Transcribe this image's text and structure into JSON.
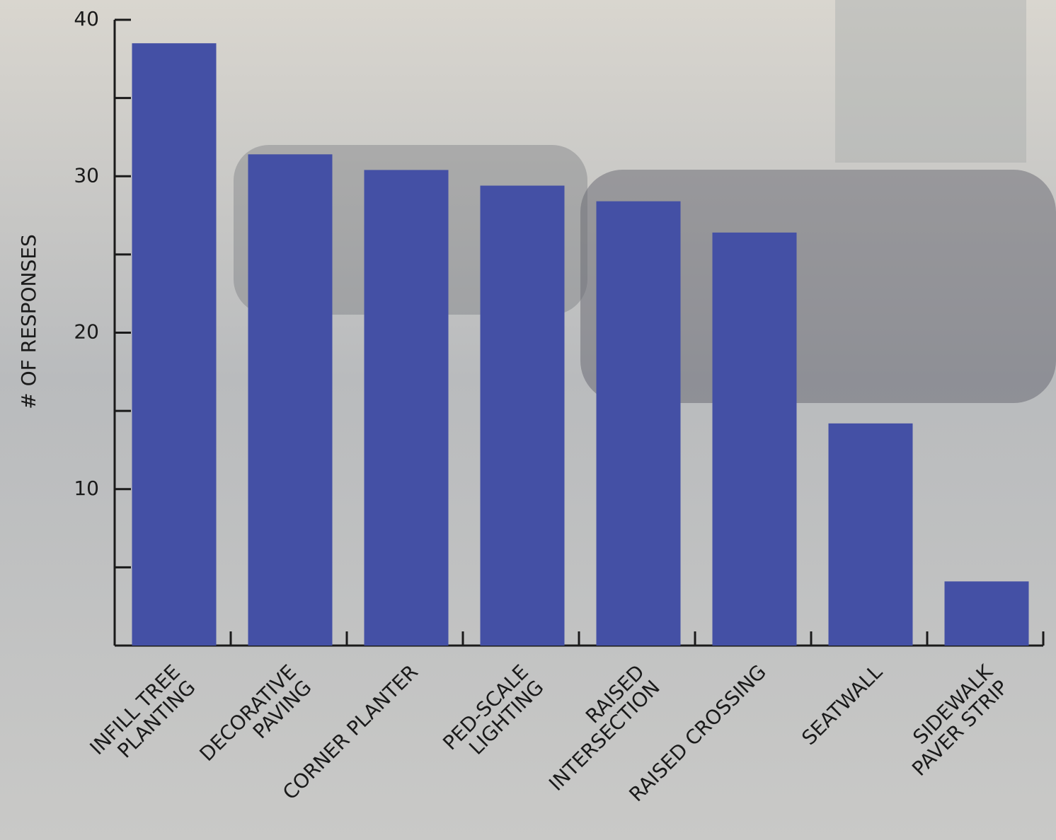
{
  "chart_data": {
    "type": "bar",
    "y_label": "# OF RESPONSES",
    "categories": [
      [
        "INFILL TREE",
        "PLANTING"
      ],
      [
        "DECORATIVE",
        "PAVING"
      ],
      [
        "CORNER PLANTER"
      ],
      [
        "PED-SCALE",
        "LIGHTING"
      ],
      [
        "RAISED",
        "INTERSECTION"
      ],
      [
        "RAISED CROSSING"
      ],
      [
        "SEATWALL"
      ],
      [
        "SIDEWALK",
        "PAVER STRIP"
      ]
    ],
    "values": [
      38.5,
      31.4,
      30.4,
      29.4,
      28.4,
      26.4,
      14.2,
      4.1
    ],
    "color": "#4450a5",
    "ylim": [
      0,
      40
    ],
    "yticks": [
      10,
      20,
      30,
      40
    ],
    "minor_yticks": [
      5,
      15,
      25,
      35
    ],
    "grid": false
  }
}
